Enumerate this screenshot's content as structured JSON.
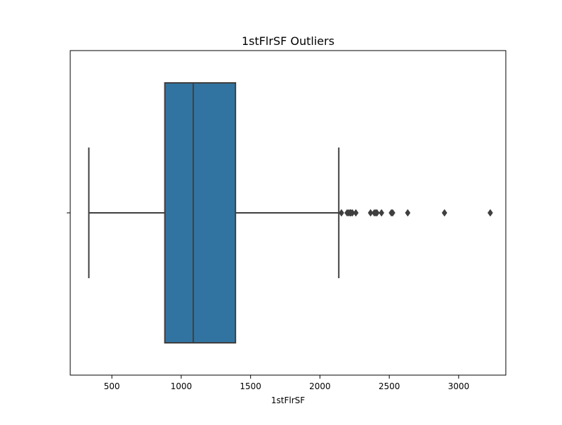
{
  "chart_data": {
    "type": "box",
    "title": "1stFlrSF Outliers",
    "xlabel": "1stFlrSF",
    "ylabel": "",
    "xlim": [
      200,
      3340
    ],
    "x_ticks": [
      500,
      1000,
      1500,
      2000,
      2500,
      3000
    ],
    "x_tick_labels": [
      "500",
      "1000",
      "1500",
      "2000",
      "2500",
      "3000"
    ],
    "grid": false,
    "orientation": "horizontal",
    "box": {
      "whisker_low": 334,
      "q1": 882,
      "median": 1087,
      "q3": 1391,
      "whisker_high": 2136,
      "color": "#3274a1",
      "edge_color": "#3f3f3f"
    },
    "outliers": [
      2155,
      2196,
      2207,
      2217,
      2223,
      2234,
      2259,
      2365,
      2392,
      2402,
      2411,
      2444,
      2515,
      2524,
      2633,
      2898,
      3228
    ]
  }
}
